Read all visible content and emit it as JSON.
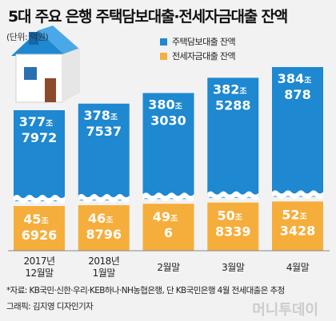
{
  "title": "5대 주요 은행 주택담보대출·전세자금대출 잔액",
  "unit_note": "(단위: 억원)",
  "legend": [
    {
      "label": "주택담보대출 잔액",
      "color": "#1e88d0"
    },
    {
      "label": "전세자금대출 잔액",
      "color": "#f5ae3c"
    }
  ],
  "source_note": "*자료: KB국민·신한·우리·KEB하나·NH농협은행, 단 KB국민은행 4월 전세대출은 추정",
  "credit": "그래픽: 김지영 디자인기자",
  "watermark": "머니투데이",
  "chart_data": {
    "type": "bar",
    "stacked": true,
    "categories": [
      [
        "2017년",
        "12월말"
      ],
      [
        "2018년",
        "1월말"
      ],
      [
        "2월말"
      ],
      [
        "3월말"
      ],
      [
        "4월말"
      ]
    ],
    "series": [
      {
        "name": "주택담보대출 잔액",
        "color": "#1e88d0",
        "values": [
          3777972,
          3787537,
          3803030,
          3825288,
          3840878
        ],
        "labels": [
          [
            "377",
            "조",
            "7972"
          ],
          [
            "378",
            "조",
            "7537"
          ],
          [
            "380",
            "조",
            "3030"
          ],
          [
            "382",
            "조",
            "5288"
          ],
          [
            "384",
            "조",
            "878"
          ]
        ]
      },
      {
        "name": "전세자금대출 잔액",
        "color": "#f5ae3c",
        "values": [
          456926,
          468796,
          490006,
          508339,
          523428
        ],
        "labels": [
          [
            "45",
            "조",
            "6926"
          ],
          [
            "46",
            "조",
            "8796"
          ],
          [
            "49",
            "조",
            "6"
          ],
          [
            "50",
            "조",
            "8339"
          ],
          [
            "52",
            "조",
            "3428"
          ]
        ]
      }
    ],
    "axis_break": true
  }
}
